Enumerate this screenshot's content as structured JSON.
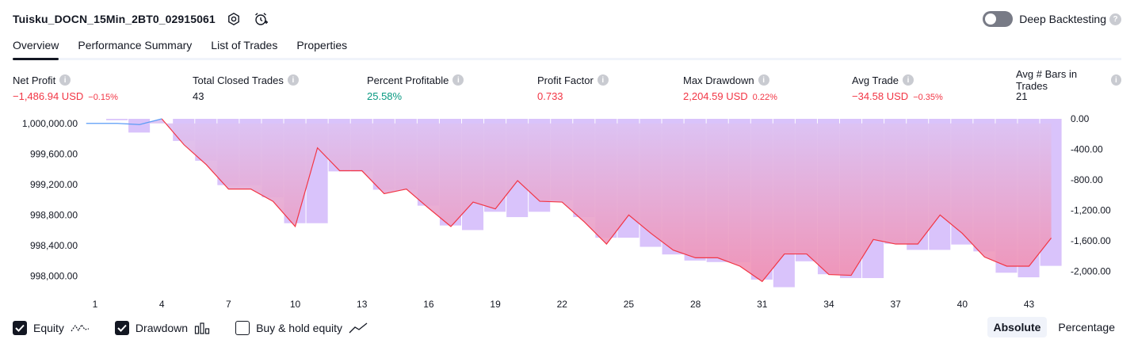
{
  "header": {
    "title": "Tuisku_DOCN_15Min_2BT0_02915061",
    "deep_backtesting_label": "Deep Backtesting",
    "deep_backtesting_enabled": false
  },
  "tabs": [
    {
      "label": "Overview",
      "active": true
    },
    {
      "label": "Performance Summary",
      "active": false
    },
    {
      "label": "List of Trades",
      "active": false
    },
    {
      "label": "Properties",
      "active": false
    }
  ],
  "metrics": [
    {
      "label": "Net Profit",
      "value": "−1,486.94 USD",
      "pct": "−0.15%",
      "tone": "neg"
    },
    {
      "label": "Total Closed Trades",
      "value": "43",
      "pct": "",
      "tone": "plain"
    },
    {
      "label": "Percent Profitable",
      "value": "25.58%",
      "pct": "",
      "tone": "pos"
    },
    {
      "label": "Profit Factor",
      "value": "0.733",
      "pct": "",
      "tone": "neg"
    },
    {
      "label": "Max Drawdown",
      "value": "2,204.59 USD",
      "pct": "0.22%",
      "tone": "neg"
    },
    {
      "label": "Avg Trade",
      "value": "−34.58 USD",
      "pct": "−0.35%",
      "tone": "neg"
    },
    {
      "label": "Avg # Bars in Trades",
      "value": "21",
      "pct": "",
      "tone": "plain"
    }
  ],
  "chart_data": {
    "type": "line",
    "x_ticks": [
      1,
      4,
      7,
      10,
      13,
      16,
      19,
      22,
      25,
      28,
      31,
      34,
      37,
      40,
      43
    ],
    "xlim": [
      1,
      44
    ],
    "left_axis": {
      "ticks": [
        "1,000,000.00",
        "999,600.00",
        "999,200.00",
        "998,800.00",
        "998,400.00",
        "998,000.00"
      ],
      "tick_values": [
        1000000,
        999600,
        999200,
        998800,
        998400,
        998000
      ],
      "range": [
        997860,
        1000060
      ]
    },
    "right_axis": {
      "ticks": [
        "0.00",
        "-400.00",
        "-800.00",
        "-1,200.00",
        "-1,600.00",
        "-2,000.00"
      ],
      "tick_values": [
        0,
        -400,
        -800,
        -1200,
        -1600,
        -2000
      ],
      "range": [
        -2204.59,
        0
      ]
    },
    "series": [
      {
        "name": "Equity",
        "x": [
          0.6,
          1,
          2,
          3,
          4,
          5,
          6,
          7,
          8,
          9,
          10,
          11,
          12,
          13,
          14,
          15,
          16,
          17,
          18,
          19,
          20,
          21,
          22,
          23,
          24,
          25,
          26,
          27,
          28,
          29,
          30,
          31,
          32,
          33,
          34,
          35,
          36,
          37,
          38,
          39,
          40,
          41,
          42,
          43,
          44
        ],
        "values": [
          1000000,
          1000000,
          1000000,
          999985,
          1000060,
          999720,
          999460,
          999140,
          999140,
          998980,
          998650,
          999680,
          999380,
          999380,
          999080,
          999140,
          998890,
          998650,
          998970,
          998880,
          999250,
          998980,
          998970,
          998710,
          998420,
          998800,
          998560,
          998340,
          998240,
          998240,
          998130,
          997930,
          998290,
          998290,
          998020,
          998010,
          998480,
          998420,
          998420,
          998800,
          998560,
          998250,
          998130,
          998130,
          998500
        ]
      },
      {
        "name": "Drawdown",
        "type": "bar",
        "x": [
          2,
          3,
          4,
          5,
          6,
          7,
          8,
          9,
          10,
          11,
          12,
          13,
          14,
          15,
          16,
          17,
          18,
          19,
          20,
          21,
          22,
          23,
          24,
          25,
          26,
          27,
          28,
          29,
          30,
          31,
          32,
          33,
          34,
          35,
          36,
          37,
          38,
          39,
          40,
          41,
          42,
          43,
          44
        ],
        "values": [
          -18,
          -180,
          0,
          -290,
          -550,
          -870,
          -870,
          -1030,
          -1370,
          -1370,
          -690,
          -690,
          -930,
          -930,
          -1140,
          -1400,
          -1460,
          -1220,
          -1290,
          -1220,
          -1070,
          -1290,
          -1560,
          -1560,
          -1680,
          -1780,
          -1860,
          -1880,
          -1880,
          -2110,
          -2210,
          -1870,
          -2040,
          -2090,
          -2090,
          -1640,
          -1720,
          -1720,
          -1650,
          -1740,
          -2020,
          -2080,
          -1930
        ]
      },
      {
        "name": "Buy & hold equity",
        "enabled": false,
        "values": []
      }
    ]
  },
  "legend": [
    {
      "label": "Equity",
      "checked": true
    },
    {
      "label": "Drawdown",
      "checked": true
    },
    {
      "label": "Buy & hold equity",
      "checked": false
    }
  ],
  "scale": {
    "absolute_label": "Absolute",
    "percentage_label": "Percentage",
    "active": "absolute"
  },
  "colors": {
    "equity_line": "#f23645",
    "equity_line_early": "#5b9cf6",
    "equity_fill_top": "#d8bff2",
    "equity_fill_bottom": "#f48fb1",
    "drawdown_bar": "#d9c3fb",
    "negative": "#f23645",
    "positive": "#089981"
  }
}
